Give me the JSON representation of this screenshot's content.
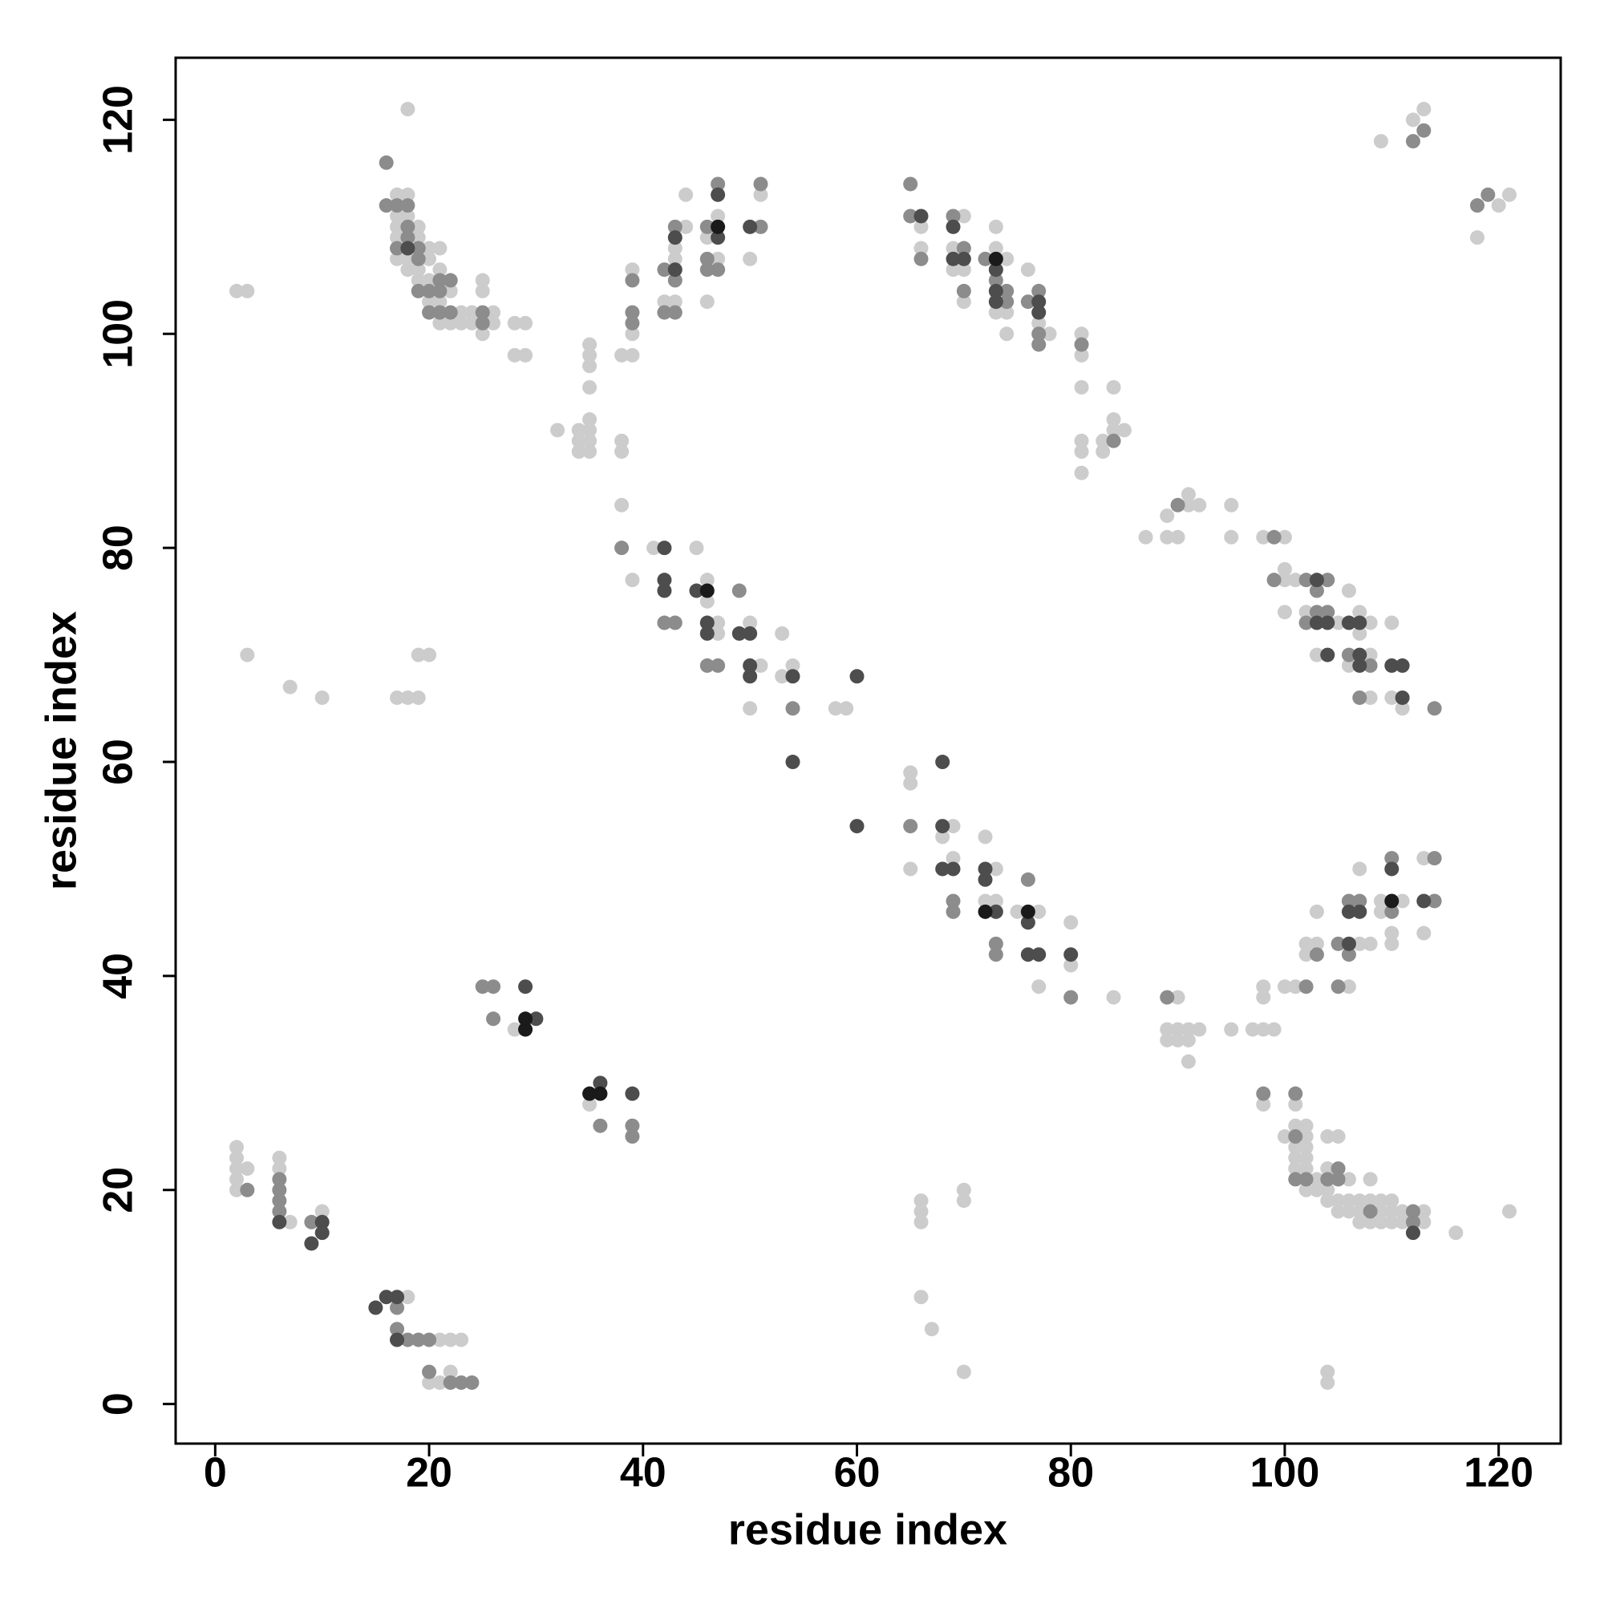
{
  "chart_data": {
    "type": "scatter",
    "x_label": "residue index",
    "y_label": "residue index",
    "xlim": [
      -3.7,
      125.8
    ],
    "ylim": [
      -3.7,
      125.8
    ],
    "xticks": [
      0,
      20,
      40,
      60,
      80,
      100,
      120
    ],
    "yticks": [
      0,
      20,
      40,
      60,
      80,
      100,
      120
    ],
    "series": [
      {
        "color": "#cccccc",
        "x": [
          2,
          2,
          2,
          2,
          2,
          3,
          6,
          6,
          7,
          10,
          18,
          21,
          22,
          23,
          20,
          21,
          22,
          28,
          35,
          3,
          7,
          10,
          17,
          18,
          19,
          19,
          20,
          2,
          3,
          18,
          17,
          17,
          17,
          17,
          17,
          18,
          18,
          18,
          18,
          19,
          19,
          19,
          19,
          20,
          20,
          20,
          20,
          21,
          21,
          21,
          21,
          22,
          22,
          23,
          23,
          24,
          24,
          25,
          25,
          25,
          26,
          26,
          28,
          28,
          29,
          29,
          32,
          34,
          34,
          34,
          35,
          35,
          35,
          35,
          35,
          35,
          35,
          35,
          38,
          39,
          38,
          38,
          38,
          39,
          39,
          42,
          43,
          43,
          43,
          44,
          44,
          46,
          46,
          47,
          47,
          50,
          51,
          39,
          41,
          45,
          46,
          46,
          47,
          47,
          50,
          50,
          51,
          53,
          53,
          54,
          58,
          59,
          66,
          66,
          69,
          69,
          70,
          70,
          70,
          73,
          73,
          73,
          74,
          74,
          74,
          76,
          77,
          78,
          81,
          81,
          81,
          81,
          81,
          81,
          83,
          83,
          84,
          84,
          84,
          85,
          87,
          89,
          89,
          90,
          91,
          91,
          92,
          95,
          95,
          98,
          100,
          100,
          100,
          100,
          101,
          102,
          103,
          105,
          106,
          106,
          107,
          107,
          108,
          108,
          108,
          110,
          110,
          111,
          65,
          65,
          65,
          68,
          69,
          69,
          72,
          72,
          73,
          73,
          75,
          77,
          77,
          80,
          80,
          84,
          90,
          89,
          89,
          90,
          90,
          91,
          91,
          91,
          92,
          95,
          97,
          98,
          99,
          98,
          98,
          100,
          101,
          102,
          102,
          103,
          103,
          106,
          107,
          107,
          108,
          109,
          109,
          110,
          110,
          111,
          113,
          113,
          98,
          101,
          100,
          101,
          101,
          101,
          101,
          102,
          102,
          102,
          102,
          102,
          102,
          103,
          103,
          104,
          104,
          104,
          104,
          105,
          105,
          105,
          106,
          106,
          106,
          107,
          107,
          107,
          108,
          108,
          108,
          109,
          109,
          109,
          110,
          110,
          110,
          111,
          111,
          113,
          113,
          116,
          121,
          104,
          104,
          70,
          66,
          66,
          66,
          66,
          67,
          70,
          70,
          109,
          112,
          113,
          118,
          120,
          121
        ],
        "values": [
          24,
          23,
          22,
          21,
          20,
          22,
          23,
          22,
          17,
          18,
          10,
          6,
          6,
          6,
          2,
          2,
          3,
          35,
          28,
          70,
          67,
          66,
          66,
          66,
          66,
          70,
          70,
          104,
          104,
          121,
          113,
          111,
          110,
          109,
          107,
          113,
          111,
          107,
          106,
          110,
          109,
          106,
          105,
          108,
          107,
          105,
          103,
          108,
          106,
          103,
          101,
          104,
          101,
          102,
          101,
          102,
          101,
          105,
          104,
          100,
          102,
          101,
          101,
          98,
          101,
          98,
          91,
          91,
          90,
          89,
          92,
          91,
          90,
          89,
          99,
          98,
          97,
          95,
          98,
          98,
          90,
          89,
          84,
          106,
          100,
          103,
          108,
          107,
          103,
          113,
          110,
          109,
          103,
          111,
          107,
          107,
          113,
          77,
          80,
          80,
          77,
          75,
          73,
          72,
          73,
          65,
          69,
          72,
          68,
          69,
          65,
          65,
          110,
          108,
          108,
          106,
          111,
          106,
          103,
          110,
          108,
          102,
          107,
          102,
          100,
          106,
          101,
          100,
          100,
          98,
          95,
          90,
          89,
          87,
          89,
          90,
          95,
          92,
          91,
          91,
          81,
          83,
          81,
          81,
          85,
          84,
          84,
          84,
          81,
          81,
          81,
          78,
          77,
          74,
          77,
          74,
          70,
          73,
          76,
          69,
          74,
          72,
          73,
          70,
          66,
          73,
          66,
          65,
          59,
          58,
          50,
          53,
          54,
          51,
          53,
          47,
          50,
          47,
          46,
          46,
          39,
          45,
          41,
          38,
          38,
          35,
          34,
          35,
          34,
          35,
          34,
          32,
          35,
          35,
          35,
          35,
          35,
          39,
          38,
          39,
          39,
          43,
          42,
          46,
          43,
          39,
          50,
          43,
          43,
          47,
          46,
          44,
          43,
          47,
          51,
          44,
          28,
          28,
          25,
          26,
          24,
          23,
          22,
          26,
          25,
          24,
          23,
          22,
          20,
          21,
          20,
          25,
          22,
          20,
          19,
          25,
          19,
          18,
          21,
          19,
          18,
          19,
          18,
          17,
          21,
          19,
          17,
          19,
          18,
          17,
          19,
          18,
          17,
          18,
          17,
          18,
          17,
          16,
          18,
          3,
          2,
          3,
          19,
          18,
          17,
          10,
          7,
          20,
          19,
          118,
          120,
          121,
          109,
          112,
          113
        ]
      },
      {
        "color": "#8c8c8c",
        "x": [
          3,
          6,
          6,
          6,
          6,
          9,
          17,
          17,
          18,
          19,
          20,
          20,
          22,
          23,
          24,
          25,
          26,
          26,
          36,
          39,
          39,
          16,
          16,
          17,
          17,
          18,
          18,
          18,
          19,
          19,
          19,
          20,
          20,
          21,
          21,
          21,
          22,
          22,
          25,
          25,
          39,
          39,
          39,
          42,
          42,
          43,
          43,
          43,
          46,
          46,
          46,
          47,
          47,
          51,
          51,
          38,
          42,
          43,
          46,
          47,
          49,
          54,
          65,
          65,
          66,
          69,
          70,
          70,
          72,
          73,
          74,
          74,
          76,
          77,
          77,
          77,
          81,
          84,
          90,
          99,
          99,
          102,
          102,
          103,
          103,
          104,
          104,
          106,
          107,
          108,
          114,
          65,
          69,
          69,
          73,
          73,
          76,
          80,
          89,
          102,
          103,
          105,
          105,
          106,
          106,
          107,
          110,
          110,
          114,
          114,
          98,
          101,
          101,
          101,
          102,
          104,
          105,
          105,
          108,
          112,
          112,
          112,
          113,
          118,
          119
        ],
        "values": [
          20,
          21,
          20,
          19,
          18,
          17,
          9,
          7,
          6,
          6,
          6,
          3,
          2,
          2,
          2,
          39,
          39,
          36,
          26,
          26,
          25,
          116,
          112,
          112,
          108,
          112,
          110,
          109,
          108,
          107,
          104,
          104,
          102,
          105,
          104,
          102,
          105,
          102,
          102,
          101,
          105,
          102,
          101,
          106,
          102,
          110,
          105,
          102,
          110,
          107,
          106,
          114,
          106,
          114,
          110,
          80,
          73,
          73,
          69,
          69,
          76,
          65,
          114,
          111,
          107,
          111,
          108,
          104,
          107,
          105,
          104,
          103,
          103,
          104,
          100,
          99,
          99,
          90,
          84,
          81,
          77,
          77,
          73,
          76,
          74,
          77,
          74,
          70,
          66,
          69,
          65,
          54,
          47,
          46,
          43,
          42,
          49,
          38,
          38,
          39,
          42,
          43,
          39,
          42,
          47,
          47,
          51,
          46,
          51,
          47,
          29,
          29,
          25,
          21,
          21,
          21,
          22,
          21,
          18,
          18,
          17,
          118,
          119,
          112,
          113
        ]
      },
      {
        "color": "#4d4d4d",
        "x": [
          6,
          9,
          10,
          10,
          15,
          16,
          17,
          17,
          29,
          30,
          36,
          39,
          18,
          43,
          43,
          47,
          47,
          50,
          42,
          42,
          42,
          45,
          46,
          46,
          49,
          50,
          50,
          50,
          54,
          60,
          54,
          60,
          66,
          69,
          69,
          70,
          73,
          73,
          73,
          77,
          77,
          103,
          103,
          104,
          104,
          106,
          107,
          107,
          107,
          110,
          111,
          111,
          68,
          68,
          68,
          69,
          72,
          72,
          73,
          76,
          76,
          77,
          80,
          106,
          106,
          107,
          110,
          113,
          112
        ],
        "values": [
          17,
          15,
          17,
          16,
          9,
          10,
          10,
          6,
          39,
          36,
          30,
          29,
          108,
          109,
          106,
          113,
          109,
          110,
          80,
          77,
          76,
          76,
          73,
          72,
          72,
          72,
          69,
          68,
          68,
          68,
          60,
          54,
          111,
          110,
          107,
          107,
          106,
          104,
          103,
          103,
          102,
          77,
          73,
          73,
          70,
          73,
          73,
          70,
          69,
          69,
          69,
          66,
          60,
          54,
          50,
          50,
          50,
          49,
          46,
          45,
          42,
          42,
          42,
          43,
          46,
          46,
          50,
          47,
          16
        ]
      },
      {
        "color": "#1a1a1a",
        "x": [
          29,
          29,
          35,
          36,
          47,
          46,
          73,
          72,
          76,
          110
        ],
        "values": [
          36,
          35,
          29,
          29,
          110,
          76,
          107,
          46,
          46,
          47
        ]
      }
    ]
  }
}
